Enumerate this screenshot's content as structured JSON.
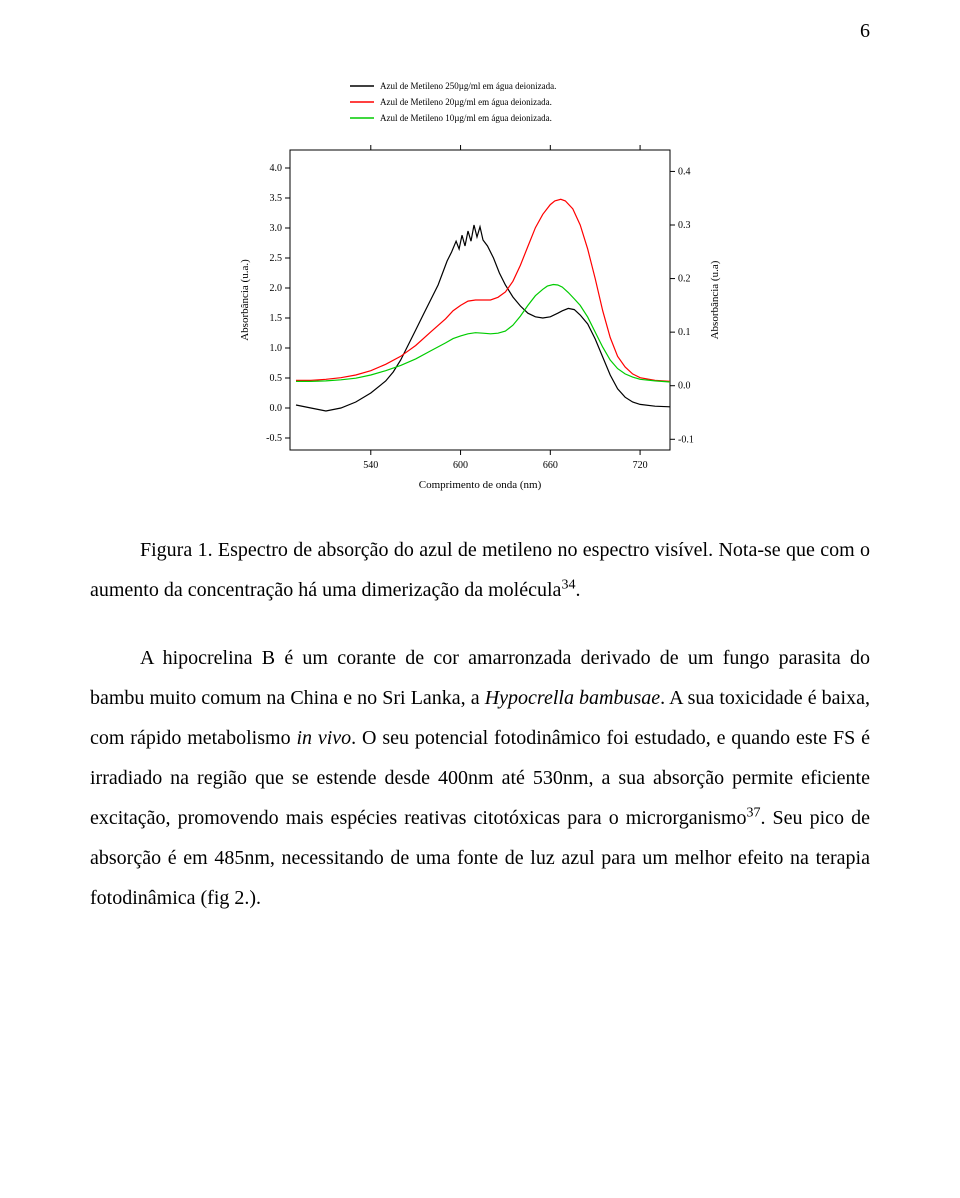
{
  "page_number": "6",
  "chart": {
    "type": "line",
    "legend": {
      "items": [
        {
          "label": "Azul de Metileno 250µg/ml em água deionizada.",
          "color": "#000000"
        },
        {
          "label": "Azul de Metileno 20µg/ml em água deionizada.",
          "color": "#ff0000"
        },
        {
          "label": "Azul de Metileno 10µg/ml em água deionizada.",
          "color": "#00cc00"
        }
      ],
      "fontsize": 9,
      "position": "top-center"
    },
    "x_axis": {
      "label": "Comprimento de onda (nm)",
      "min": 486,
      "max": 740,
      "ticks": [
        540,
        600,
        660,
        720
      ],
      "fontsize": 10
    },
    "y_left": {
      "label": "Absorbância (u.a.)",
      "min": -0.7,
      "max": 4.3,
      "ticks": [
        -0.5,
        0.0,
        0.5,
        1.0,
        1.5,
        2.0,
        2.5,
        3.0,
        3.5,
        4.0
      ],
      "fontsize": 10
    },
    "y_right": {
      "label": "Absorbância (u.a)",
      "min": -0.12,
      "max": 0.44,
      "ticks": [
        -0.1,
        0.0,
        0.1,
        0.2,
        0.3,
        0.4
      ],
      "fontsize": 10
    },
    "background_color": "#ffffff",
    "axis_color": "#000000",
    "series": [
      {
        "name": "250ug",
        "axis": "left",
        "color": "#000000",
        "width": 1.2,
        "points": [
          [
            490,
            0.05
          ],
          [
            500,
            0.0
          ],
          [
            510,
            -0.05
          ],
          [
            520,
            0.0
          ],
          [
            530,
            0.1
          ],
          [
            540,
            0.25
          ],
          [
            550,
            0.45
          ],
          [
            555,
            0.6
          ],
          [
            560,
            0.8
          ],
          [
            565,
            1.05
          ],
          [
            570,
            1.3
          ],
          [
            575,
            1.55
          ],
          [
            580,
            1.8
          ],
          [
            585,
            2.05
          ],
          [
            588,
            2.25
          ],
          [
            591,
            2.45
          ],
          [
            594,
            2.6
          ],
          [
            597,
            2.78
          ],
          [
            599,
            2.65
          ],
          [
            601,
            2.88
          ],
          [
            603,
            2.7
          ],
          [
            605,
            2.95
          ],
          [
            607,
            2.78
          ],
          [
            609,
            3.05
          ],
          [
            611,
            2.85
          ],
          [
            613,
            3.02
          ],
          [
            615,
            2.8
          ],
          [
            618,
            2.7
          ],
          [
            622,
            2.5
          ],
          [
            626,
            2.25
          ],
          [
            630,
            2.05
          ],
          [
            635,
            1.85
          ],
          [
            640,
            1.7
          ],
          [
            645,
            1.58
          ],
          [
            650,
            1.52
          ],
          [
            655,
            1.5
          ],
          [
            660,
            1.52
          ],
          [
            665,
            1.58
          ],
          [
            668,
            1.62
          ],
          [
            672,
            1.66
          ],
          [
            676,
            1.64
          ],
          [
            680,
            1.55
          ],
          [
            685,
            1.4
          ],
          [
            690,
            1.15
          ],
          [
            695,
            0.85
          ],
          [
            700,
            0.55
          ],
          [
            705,
            0.32
          ],
          [
            710,
            0.18
          ],
          [
            715,
            0.1
          ],
          [
            720,
            0.06
          ],
          [
            730,
            0.03
          ],
          [
            740,
            0.02
          ]
        ]
      },
      {
        "name": "20ug",
        "axis": "right",
        "color": "#ff0000",
        "width": 1.2,
        "points": [
          [
            490,
            0.01
          ],
          [
            500,
            0.01
          ],
          [
            510,
            0.012
          ],
          [
            520,
            0.015
          ],
          [
            530,
            0.02
          ],
          [
            540,
            0.028
          ],
          [
            550,
            0.04
          ],
          [
            560,
            0.055
          ],
          [
            570,
            0.075
          ],
          [
            580,
            0.1
          ],
          [
            590,
            0.125
          ],
          [
            595,
            0.14
          ],
          [
            600,
            0.15
          ],
          [
            605,
            0.158
          ],
          [
            610,
            0.16
          ],
          [
            615,
            0.16
          ],
          [
            620,
            0.16
          ],
          [
            625,
            0.165
          ],
          [
            630,
            0.175
          ],
          [
            635,
            0.195
          ],
          [
            640,
            0.225
          ],
          [
            645,
            0.26
          ],
          [
            650,
            0.295
          ],
          [
            655,
            0.32
          ],
          [
            660,
            0.338
          ],
          [
            663,
            0.345
          ],
          [
            667,
            0.348
          ],
          [
            670,
            0.345
          ],
          [
            675,
            0.33
          ],
          [
            680,
            0.3
          ],
          [
            685,
            0.255
          ],
          [
            690,
            0.2
          ],
          [
            695,
            0.14
          ],
          [
            700,
            0.09
          ],
          [
            705,
            0.055
          ],
          [
            710,
            0.035
          ],
          [
            715,
            0.022
          ],
          [
            720,
            0.015
          ],
          [
            730,
            0.01
          ],
          [
            740,
            0.008
          ]
        ]
      },
      {
        "name": "10ug",
        "axis": "right",
        "color": "#00cc00",
        "width": 1.2,
        "points": [
          [
            490,
            0.008
          ],
          [
            500,
            0.008
          ],
          [
            510,
            0.009
          ],
          [
            520,
            0.011
          ],
          [
            530,
            0.014
          ],
          [
            540,
            0.02
          ],
          [
            550,
            0.028
          ],
          [
            560,
            0.038
          ],
          [
            570,
            0.05
          ],
          [
            580,
            0.065
          ],
          [
            590,
            0.08
          ],
          [
            595,
            0.088
          ],
          [
            600,
            0.093
          ],
          [
            605,
            0.097
          ],
          [
            610,
            0.099
          ],
          [
            615,
            0.098
          ],
          [
            620,
            0.097
          ],
          [
            625,
            0.098
          ],
          [
            630,
            0.102
          ],
          [
            635,
            0.113
          ],
          [
            640,
            0.13
          ],
          [
            645,
            0.15
          ],
          [
            650,
            0.168
          ],
          [
            655,
            0.18
          ],
          [
            658,
            0.186
          ],
          [
            662,
            0.189
          ],
          [
            665,
            0.188
          ],
          [
            668,
            0.184
          ],
          [
            672,
            0.174
          ],
          [
            676,
            0.162
          ],
          [
            680,
            0.15
          ],
          [
            685,
            0.128
          ],
          [
            690,
            0.1
          ],
          [
            695,
            0.072
          ],
          [
            700,
            0.048
          ],
          [
            705,
            0.032
          ],
          [
            710,
            0.022
          ],
          [
            715,
            0.016
          ],
          [
            720,
            0.012
          ],
          [
            730,
            0.009
          ],
          [
            740,
            0.007
          ]
        ]
      }
    ]
  },
  "caption": {
    "prefix": "Figura 1. Espectro de absorção do azul de metileno no espectro visível. Nota-se que com o aumento da concentração há uma dimerização da molécula",
    "sup": "34",
    "suffix": "."
  },
  "para2": {
    "t1": "A hipocrelina B é um corante de cor amarronzada derivado de um fungo parasita do bambu muito comum na China e no Sri Lanka, a ",
    "it1": "Hypocrella bambusae",
    "t2": ". A sua toxicidade é baixa, com rápido metabolismo ",
    "it2": "in vivo",
    "t3": ". O seu potencial fotodinâmico foi estudado, e quando este FS é irradiado na região que se estende desde 400nm até 530nm, a sua absorção permite eficiente excitação, promovendo mais espécies reativas citotóxicas para o microrganismo",
    "sup": "37",
    "t4": ". Seu pico de absorção é em 485nm, necessitando de uma fonte de luz azul para um melhor efeito na terapia fotodinâmica (fig 2.)."
  }
}
